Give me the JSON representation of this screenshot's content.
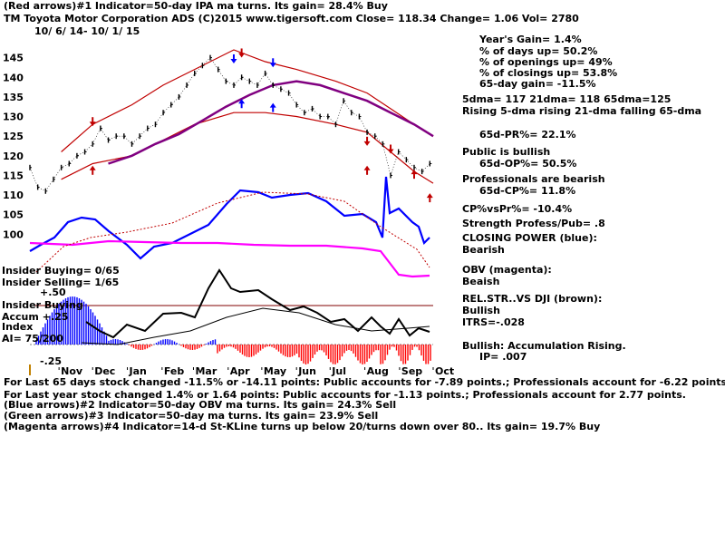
{
  "header": {
    "line1": "(Red arrows)#1 Indicator=50-day IPA ma turns. Its gain= 28.4% Buy",
    "line2": "TM   Toyota Motor Corporation ADS  (C)2015 www.tigersoft.com      Close=  118.34  Change= 1.06 Vol= 2780",
    "line3": "10/ 6/ 14- 10/ 1/ 15"
  },
  "stats": [
    "Year's Gain= 1.4%",
    "% of days up= 50.2%",
    "% of openings up= 49%",
    "% of closings up= 53.8%",
    "65-day gain= -11.5%",
    "5dma= 117 21dma= 118 65dma=125",
    "Rising 5-dma rising 21-dma falling 65-dma",
    "65d-PR%= 22.1%",
    "Public is bullish",
    "65d-OP%= 50.5%",
    "Professionals are bearish",
    "65d-CP%= 11.8%",
    "CP%vsPr%= -10.4%",
    "Strength Profess/Pub= .8",
    "CLOSING POWER (blue):",
    "Bearish",
    "OBV (magenta):",
    "Beaish",
    "REL.STR..VS DJI (brown):",
    "Bullish",
    "ITRS=-.028",
    "Bullish: Accumulation Rising.",
    "IP= .007"
  ],
  "lower_labels": {
    "insider_buying": "Insider Buying= 0/65",
    "insider_selling": "Insider Selling= 1/65",
    "plus50": "+.50",
    "insider_buying2": "Insider Buying",
    "accum": "Accum +.25",
    "index": "Index",
    "ai": "AI= 75/200",
    "minus25": "-.25"
  },
  "footer": [
    "For Last 65 days stock changed -11.5% or -14.11 points:  Public accounts for -7.89 points.;  Professionals account for -6.22 points.",
    "For Last year stock changed  1.4% or  1.64 points:  Public accounts for -1.13 points.;  Professionals account for  2.77 points.",
    "(Blue arrows)#2 Indicator=50-day OBV ma turns. Its gain= 24.3% Sell",
    "(Green arrows)#3 Indicator=50-day ma turns. Its gain= 23.9% Sell",
    "(Magenta arrows)#4 Indicator=14-d St-KLine turns up below 20/turns down over 80.. Its gain= 19.7% Buy"
  ],
  "colors": {
    "price": "#000000",
    "band": "#c00000",
    "ma65": "#800080",
    "closing_power": "#0000ff",
    "obv": "#ff00ff",
    "relstr": "#c04000",
    "accum_pos": "#0000ff",
    "accum_neg": "#ff0000",
    "grid": "#800000"
  },
  "chart_data": {
    "type": "line",
    "title": "TM   Toyota Motor Corporation ADS",
    "ylim": [
      95,
      150
    ],
    "y_ticks": [
      "145",
      "140",
      "135",
      "130",
      "125",
      "120",
      "115",
      "110",
      "105",
      "100"
    ],
    "x_ticks": [
      "Nov",
      "Dec",
      "Jan",
      "Feb",
      "Mar",
      "Apr",
      "May",
      "Jun",
      "Jul",
      "Aug",
      "Sep",
      "Oct"
    ],
    "x_start": "2014-10-06",
    "x_end": "2015-10-01",
    "series": [
      {
        "name": "Price",
        "x": [
          "2014-10-06",
          "2014-10-13",
          "2014-10-20",
          "2014-10-27",
          "2014-11-03",
          "2014-11-10",
          "2014-11-17",
          "2014-11-24",
          "2014-12-01",
          "2014-12-08",
          "2014-12-15",
          "2014-12-22",
          "2014-12-29",
          "2015-01-05",
          "2015-01-12",
          "2015-01-19",
          "2015-01-26",
          "2015-02-02",
          "2015-02-09",
          "2015-02-16",
          "2015-02-23",
          "2015-03-02",
          "2015-03-09",
          "2015-03-16",
          "2015-03-23",
          "2015-03-30",
          "2015-04-06",
          "2015-04-13",
          "2015-04-20",
          "2015-04-27",
          "2015-05-04",
          "2015-05-11",
          "2015-05-18",
          "2015-05-25",
          "2015-06-01",
          "2015-06-08",
          "2015-06-15",
          "2015-06-22",
          "2015-06-29",
          "2015-07-06",
          "2015-07-13",
          "2015-07-20",
          "2015-07-27",
          "2015-08-03",
          "2015-08-10",
          "2015-08-17",
          "2015-08-24",
          "2015-08-31",
          "2015-09-07",
          "2015-09-14",
          "2015-09-21",
          "2015-09-28"
        ],
        "values": [
          117,
          112,
          111,
          114,
          117,
          118,
          120,
          121,
          123,
          127,
          124,
          125,
          125,
          123,
          125,
          127,
          128,
          131,
          133,
          135,
          138,
          141,
          143,
          145,
          142,
          139,
          138,
          140,
          139,
          138,
          141,
          138,
          137,
          136,
          133,
          131,
          132,
          130,
          130,
          128,
          134,
          131,
          130,
          126,
          125,
          123,
          115,
          121,
          119,
          117,
          116,
          118
        ]
      },
      {
        "name": "65-dma",
        "x": [
          "2014-12-15",
          "2015-01-05",
          "2015-01-26",
          "2015-02-16",
          "2015-03-09",
          "2015-03-30",
          "2015-04-20",
          "2015-05-11",
          "2015-06-01",
          "2015-06-22",
          "2015-07-13",
          "2015-08-03",
          "2015-08-24",
          "2015-09-14",
          "2015-10-01"
        ],
        "values": [
          118,
          120,
          123,
          125.5,
          129,
          132.5,
          135.5,
          138,
          139,
          138,
          136,
          134,
          131,
          128,
          125
        ]
      },
      {
        "name": "Upper band",
        "x": [
          "2014-11-03",
          "2014-12-01",
          "2015-01-05",
          "2015-02-02",
          "2015-03-02",
          "2015-04-06",
          "2015-05-04",
          "2015-06-01",
          "2015-07-06",
          "2015-08-03",
          "2015-08-24",
          "2015-09-14",
          "2015-10-01"
        ],
        "values": [
          121,
          128,
          133,
          138,
          142,
          147,
          144,
          142,
          139,
          136,
          132,
          128,
          125
        ]
      },
      {
        "name": "Lower band",
        "x": [
          "2014-11-03",
          "2014-12-01",
          "2015-01-05",
          "2015-02-02",
          "2015-03-02",
          "2015-04-06",
          "2015-05-04",
          "2015-06-01",
          "2015-07-06",
          "2015-08-03",
          "2015-08-24",
          "2015-09-14",
          "2015-10-01"
        ],
        "values": [
          114,
          118,
          120,
          124,
          128,
          131,
          131,
          130,
          128,
          126,
          121,
          116,
          113
        ]
      }
    ]
  }
}
